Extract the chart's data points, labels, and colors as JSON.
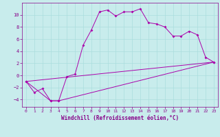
{
  "xlabel": "Windchill (Refroidissement éolien,°C)",
  "background_color": "#c8ecec",
  "line_color": "#aa00aa",
  "xlim": [
    -0.5,
    23.5
  ],
  "ylim": [
    -5.2,
    12.0
  ],
  "yticks": [
    -4,
    -2,
    0,
    2,
    4,
    6,
    8,
    10
  ],
  "xticks": [
    0,
    1,
    2,
    3,
    4,
    5,
    6,
    7,
    8,
    9,
    10,
    11,
    12,
    13,
    14,
    15,
    16,
    17,
    18,
    19,
    20,
    21,
    22,
    23
  ],
  "line1_x": [
    0,
    1,
    2,
    3,
    4,
    5,
    6,
    7,
    8,
    9,
    10,
    11,
    12,
    13,
    14,
    15,
    16,
    17,
    18,
    19,
    20,
    21,
    22,
    23
  ],
  "line1_y": [
    -1.0,
    -2.8,
    -2.2,
    -4.2,
    -4.2,
    -0.2,
    0.2,
    5.0,
    7.5,
    10.5,
    10.8,
    9.8,
    10.5,
    10.5,
    11.0,
    8.7,
    8.5,
    8.0,
    6.5,
    6.5,
    7.3,
    6.7,
    3.0,
    2.2
  ],
  "line2_x": [
    0,
    3,
    4,
    23
  ],
  "line2_y": [
    -1.0,
    -4.2,
    -4.2,
    2.2
  ],
  "line3_x": [
    0,
    23
  ],
  "line3_y": [
    -1.0,
    2.2
  ],
  "grid_color": "#aadddd",
  "font_color": "#880088",
  "fontname": "monospace",
  "tick_fontsize": 4.5,
  "xlabel_fontsize": 5.5,
  "marker_size": 2.0,
  "linewidth": 0.7
}
